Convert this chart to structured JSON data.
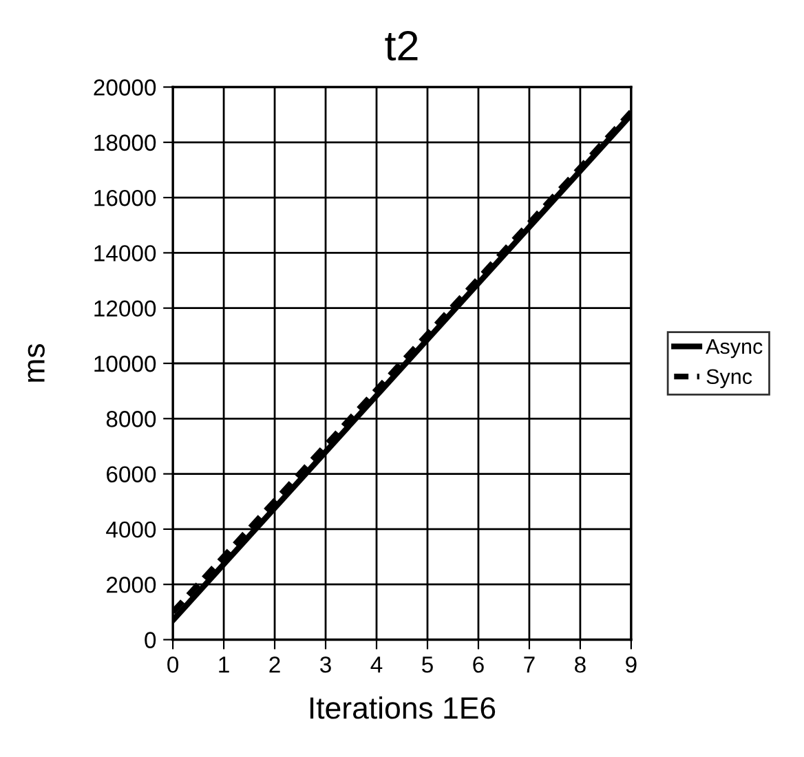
{
  "chart_data": {
    "type": "line",
    "title": "t2",
    "xlabel": "Iterations 1E6",
    "ylabel": "ms",
    "x": [
      0,
      9
    ],
    "series": [
      {
        "name": "Async",
        "color": "#000000",
        "values": [
          700,
          19000
        ],
        "line_style": "solid"
      },
      {
        "name": "Sync",
        "color": "#000000",
        "values": [
          1000,
          19100
        ],
        "line_style": "dashed"
      }
    ],
    "xlim": [
      0,
      9
    ],
    "xticks": [
      0,
      1,
      2,
      3,
      4,
      5,
      6,
      7,
      8,
      9
    ],
    "ylim": [
      0,
      20000
    ],
    "yticks": [
      0,
      2000,
      4000,
      6000,
      8000,
      10000,
      12000,
      14000,
      16000,
      18000,
      20000
    ],
    "grid": true,
    "legend": "right",
    "marker": "none"
  }
}
